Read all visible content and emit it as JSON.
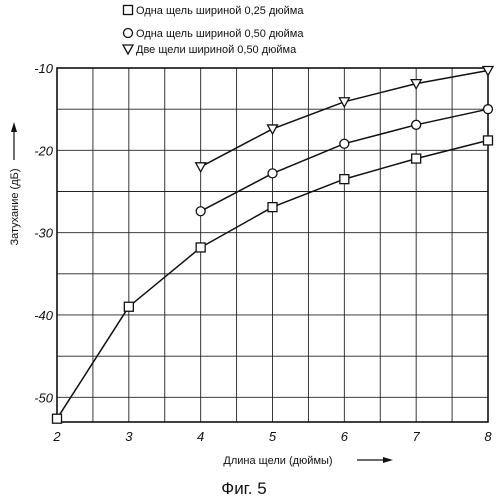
{
  "chart_data": {
    "type": "line",
    "xlabel": "Длина щели (дюймы)",
    "ylabel": "Затухание (дБ)",
    "caption": "Фиг. 5",
    "xlim": [
      2,
      8
    ],
    "ylim": [
      -53,
      -10
    ],
    "x_ticks": [
      2,
      3,
      4,
      5,
      6,
      7,
      8
    ],
    "y_ticks": [
      -10,
      -20,
      -30,
      -40,
      -50
    ],
    "x_tick_labels": [
      "2",
      "3",
      "4",
      "5",
      "6",
      "7",
      "8"
    ],
    "y_tick_labels": [
      "-10",
      "-20",
      "-30",
      "-40",
      "-50"
    ],
    "grid": true,
    "legend_position": "top",
    "series": [
      {
        "name": "Одна щель шириной 0,25 дюйма",
        "marker": "square",
        "x": [
          2,
          3,
          4,
          5,
          6,
          7,
          8
        ],
        "y": [
          -52.6,
          -39.0,
          -31.8,
          -26.9,
          -23.5,
          -21.0,
          -18.8
        ]
      },
      {
        "name": "Одна щель шириной 0,50 дюйма",
        "marker": "circle",
        "x": [
          4,
          5,
          6,
          7,
          8
        ],
        "y": [
          -27.4,
          -22.8,
          -19.2,
          -16.9,
          -15.0
        ]
      },
      {
        "name": "Две щели шириной 0,50 дюйма",
        "marker": "triangle-down",
        "x": [
          4,
          5,
          6,
          7,
          8
        ],
        "y": [
          -22.0,
          -17.4,
          -14.1,
          -11.9,
          -10.3
        ]
      }
    ]
  }
}
